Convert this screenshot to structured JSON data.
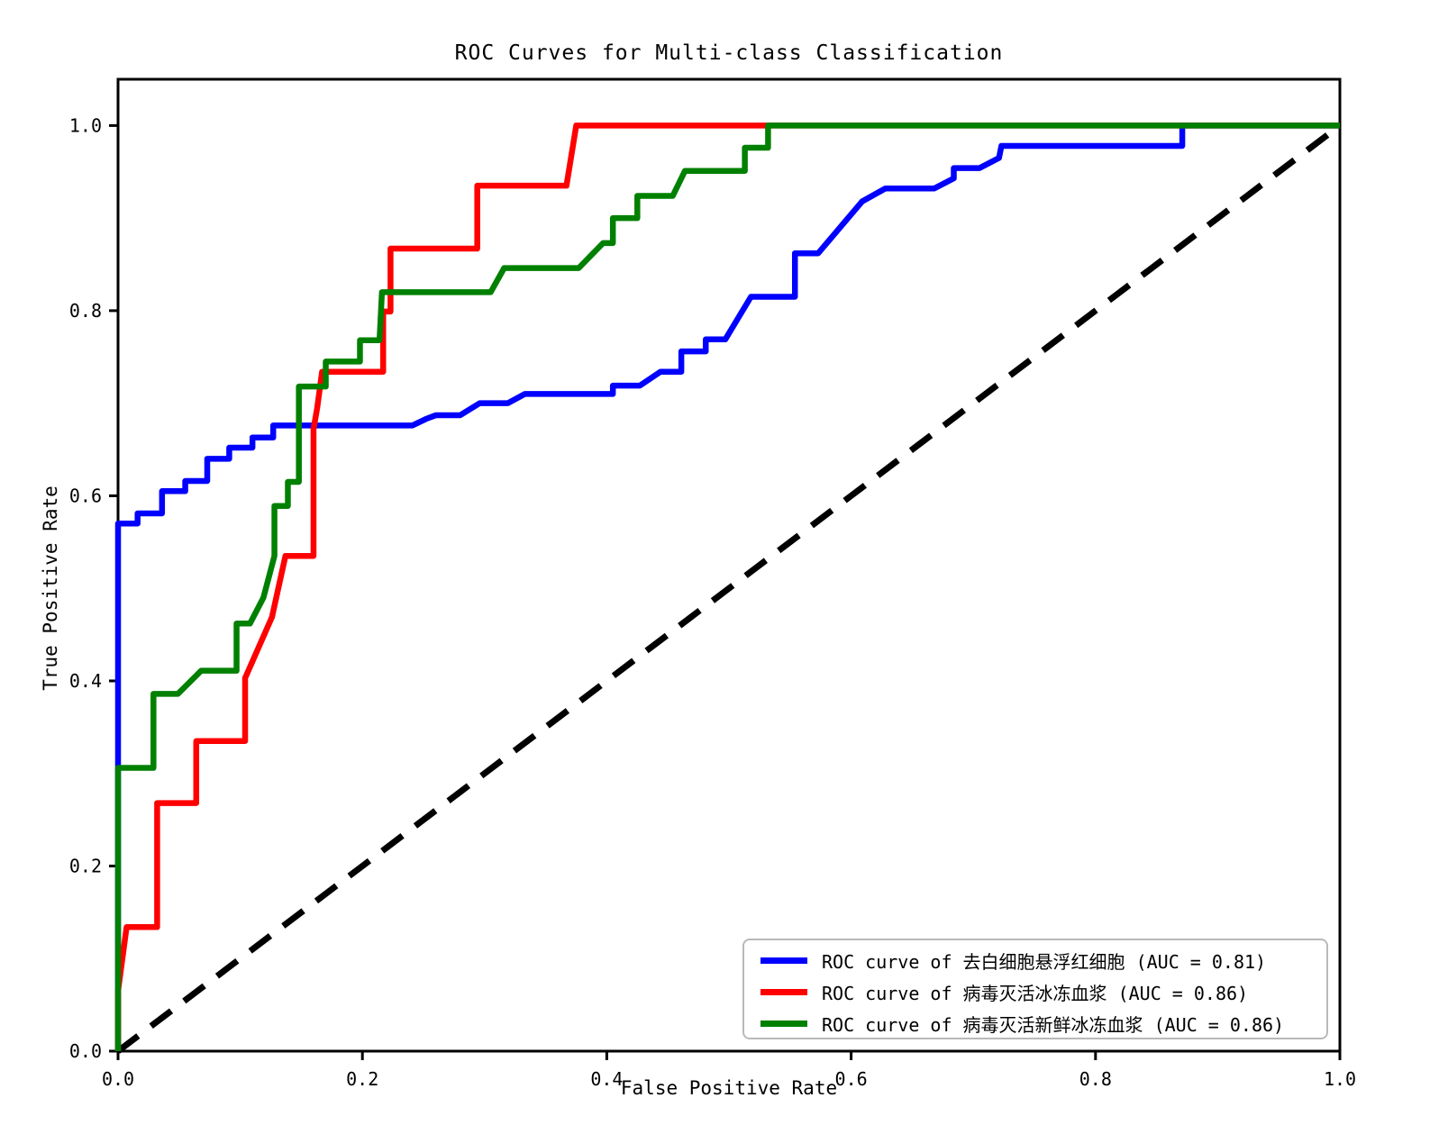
{
  "title": "ROC Curves for Multi-class Classification",
  "axes": {
    "xlabel": "False Positive Rate",
    "ylabel": "True Positive Rate",
    "x_tick_labels": [
      "0.0",
      "0.2",
      "0.4",
      "0.6",
      "0.8",
      "1.0"
    ],
    "y_tick_labels": [
      "0.0",
      "0.2",
      "0.4",
      "0.6",
      "0.8",
      "1.0"
    ]
  },
  "legend": {
    "position": "lower right",
    "items": [
      {
        "label": "ROC curve of 去白细胞悬浮红细胞 (AUC = 0.81)",
        "color": "#0000ff"
      },
      {
        "label": "ROC curve of 病毒灭活冰冻血浆 (AUC = 0.86)",
        "color": "#ff0000"
      },
      {
        "label": "ROC curve of 病毒灭活新鲜冰冻血浆 (AUC = 0.86)",
        "color": "#008000"
      }
    ]
  },
  "chart_data": {
    "type": "line",
    "title": "ROC Curves for Multi-class Classification",
    "xlabel": "False Positive Rate",
    "ylabel": "True Positive Rate",
    "xlim": [
      0.0,
      1.0
    ],
    "ylim": [
      0.0,
      1.05
    ],
    "x_ticks": [
      0.0,
      0.2,
      0.4,
      0.6,
      0.8,
      1.0
    ],
    "y_ticks": [
      0.0,
      0.2,
      0.4,
      0.6,
      0.8,
      1.0
    ],
    "grid": false,
    "legend_position": "lower right",
    "series": [
      {
        "name": "去白细胞悬浮红细胞",
        "auc": 0.81,
        "color": "#0000ff",
        "points": [
          [
            0,
            0
          ],
          [
            0,
            0.57
          ],
          [
            0.016,
            0.57
          ],
          [
            0.016,
            0.581
          ],
          [
            0.036,
            0.581
          ],
          [
            0.036,
            0.605
          ],
          [
            0.055,
            0.605
          ],
          [
            0.055,
            0.616
          ],
          [
            0.073,
            0.616
          ],
          [
            0.073,
            0.64
          ],
          [
            0.091,
            0.64
          ],
          [
            0.091,
            0.652
          ],
          [
            0.11,
            0.652
          ],
          [
            0.11,
            0.663
          ],
          [
            0.127,
            0.663
          ],
          [
            0.127,
            0.676
          ],
          [
            0.241,
            0.676
          ],
          [
            0.252,
            0.683
          ],
          [
            0.26,
            0.687
          ],
          [
            0.28,
            0.687
          ],
          [
            0.296,
            0.7
          ],
          [
            0.319,
            0.7
          ],
          [
            0.333,
            0.71
          ],
          [
            0.405,
            0.71
          ],
          [
            0.405,
            0.719
          ],
          [
            0.427,
            0.719
          ],
          [
            0.444,
            0.734
          ],
          [
            0.461,
            0.734
          ],
          [
            0.461,
            0.756
          ],
          [
            0.481,
            0.756
          ],
          [
            0.481,
            0.769
          ],
          [
            0.497,
            0.769
          ],
          [
            0.518,
            0.815
          ],
          [
            0.554,
            0.815
          ],
          [
            0.554,
            0.862
          ],
          [
            0.573,
            0.862
          ],
          [
            0.609,
            0.918
          ],
          [
            0.628,
            0.932
          ],
          [
            0.668,
            0.932
          ],
          [
            0.684,
            0.943
          ],
          [
            0.684,
            0.954
          ],
          [
            0.705,
            0.954
          ],
          [
            0.721,
            0.965
          ],
          [
            0.723,
            0.978
          ],
          [
            0.871,
            0.978
          ],
          [
            0.871,
            1.0
          ],
          [
            1.0,
            1.0
          ]
        ]
      },
      {
        "name": "病毒灭活冰冻血浆",
        "auc": 0.86,
        "color": "#ff0000",
        "points": [
          [
            0,
            0
          ],
          [
            0,
            0.065
          ],
          [
            0.007,
            0.134
          ],
          [
            0.032,
            0.134
          ],
          [
            0.032,
            0.268
          ],
          [
            0.064,
            0.268
          ],
          [
            0.064,
            0.335
          ],
          [
            0.104,
            0.335
          ],
          [
            0.104,
            0.403
          ],
          [
            0.126,
            0.469
          ],
          [
            0.137,
            0.535
          ],
          [
            0.16,
            0.535
          ],
          [
            0.16,
            0.672
          ],
          [
            0.163,
            0.695
          ],
          [
            0.167,
            0.734
          ],
          [
            0.217,
            0.734
          ],
          [
            0.217,
            0.799
          ],
          [
            0.223,
            0.799
          ],
          [
            0.223,
            0.867
          ],
          [
            0.294,
            0.867
          ],
          [
            0.294,
            0.935
          ],
          [
            0.367,
            0.935
          ],
          [
            0.375,
            1.0
          ],
          [
            1.0,
            1.0
          ]
        ]
      },
      {
        "name": "病毒灭活新鲜冰冻血浆",
        "auc": 0.86,
        "color": "#008000",
        "points": [
          [
            0,
            0
          ],
          [
            0,
            0.306
          ],
          [
            0.029,
            0.306
          ],
          [
            0.029,
            0.386
          ],
          [
            0.049,
            0.386
          ],
          [
            0.068,
            0.411
          ],
          [
            0.097,
            0.411
          ],
          [
            0.097,
            0.462
          ],
          [
            0.108,
            0.462
          ],
          [
            0.119,
            0.49
          ],
          [
            0.128,
            0.535
          ],
          [
            0.128,
            0.589
          ],
          [
            0.139,
            0.589
          ],
          [
            0.139,
            0.615
          ],
          [
            0.148,
            0.615
          ],
          [
            0.148,
            0.718
          ],
          [
            0.17,
            0.718
          ],
          [
            0.17,
            0.745
          ],
          [
            0.198,
            0.745
          ],
          [
            0.198,
            0.768
          ],
          [
            0.214,
            0.768
          ],
          [
            0.216,
            0.82
          ],
          [
            0.305,
            0.82
          ],
          [
            0.316,
            0.846
          ],
          [
            0.377,
            0.846
          ],
          [
            0.397,
            0.873
          ],
          [
            0.405,
            0.873
          ],
          [
            0.405,
            0.9
          ],
          [
            0.425,
            0.9
          ],
          [
            0.425,
            0.924
          ],
          [
            0.454,
            0.924
          ],
          [
            0.464,
            0.951
          ],
          [
            0.513,
            0.951
          ],
          [
            0.513,
            0.976
          ],
          [
            0.532,
            0.976
          ],
          [
            0.532,
            1.0
          ],
          [
            1.0,
            1.0
          ]
        ]
      }
    ],
    "reference_line": {
      "name": "chance-diagonal",
      "style": "dashed",
      "color": "#000000",
      "points": [
        [
          0,
          0
        ],
        [
          1,
          1
        ]
      ]
    }
  }
}
